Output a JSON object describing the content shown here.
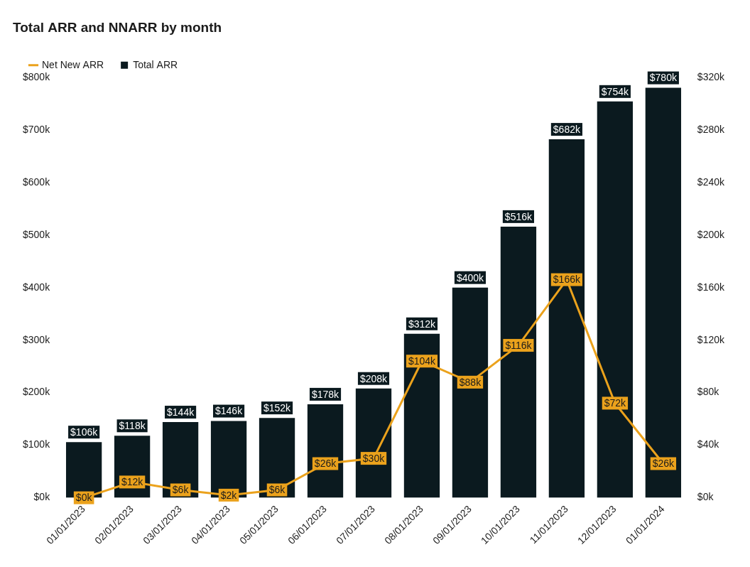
{
  "chart_data": {
    "type": "bar",
    "title": "Total ARR and NNARR by month",
    "categories": [
      "01/01/2023",
      "02/01/2023",
      "03/01/2023",
      "04/01/2023",
      "05/01/2023",
      "06/01/2023",
      "07/01/2023",
      "08/01/2023",
      "09/01/2023",
      "10/01/2023",
      "11/01/2023",
      "12/01/2023",
      "01/01/2024"
    ],
    "series": [
      {
        "name": "Total ARR",
        "type": "bar",
        "color": "#0b1a1f",
        "values": [
          106000,
          118000,
          144000,
          146000,
          152000,
          178000,
          208000,
          312000,
          400000,
          516000,
          682000,
          754000,
          780000
        ],
        "value_labels": [
          "$106k",
          "$118k",
          "$144k",
          "$146k",
          "$152k",
          "$178k",
          "$208k",
          "$312k",
          "$400k",
          "$516k",
          "$682k",
          "$754k",
          "$780k"
        ]
      },
      {
        "name": "Net New ARR",
        "type": "line",
        "color": "#eba21c",
        "axis": "y2",
        "values": [
          0,
          12000,
          6000,
          2000,
          6000,
          26000,
          30000,
          104000,
          88000,
          116000,
          166000,
          72000,
          26000
        ],
        "value_labels": [
          "$0k",
          "$12k",
          "$6k",
          "$2k",
          "$6k",
          "$26k",
          "$30k",
          "$104k",
          "$88k",
          "$116k",
          "$166k",
          "$72k",
          "$26k"
        ]
      }
    ],
    "ylim": [
      0,
      800000
    ],
    "yticks": [
      {
        "value": 0,
        "label": "$0k"
      },
      {
        "value": 100000,
        "label": "$100k"
      },
      {
        "value": 200000,
        "label": "$200k"
      },
      {
        "value": 300000,
        "label": "$300k"
      },
      {
        "value": 400000,
        "label": "$400k"
      },
      {
        "value": 500000,
        "label": "$500k"
      },
      {
        "value": 600000,
        "label": "$600k"
      },
      {
        "value": 700000,
        "label": "$700k"
      },
      {
        "value": 800000,
        "label": "$800k"
      }
    ],
    "y2lim": [
      0,
      320000
    ],
    "y2ticks": [
      {
        "value": 0,
        "label": "$0k"
      },
      {
        "value": 40000,
        "label": "$40k"
      },
      {
        "value": 80000,
        "label": "$80k"
      },
      {
        "value": 120000,
        "label": "$120k"
      },
      {
        "value": 160000,
        "label": "$160k"
      },
      {
        "value": 200000,
        "label": "$200k"
      },
      {
        "value": 240000,
        "label": "$240k"
      },
      {
        "value": 280000,
        "label": "$280k"
      },
      {
        "value": 320000,
        "label": "$320k"
      }
    ],
    "grid": false,
    "legend": "top-left",
    "data_labels": true
  }
}
